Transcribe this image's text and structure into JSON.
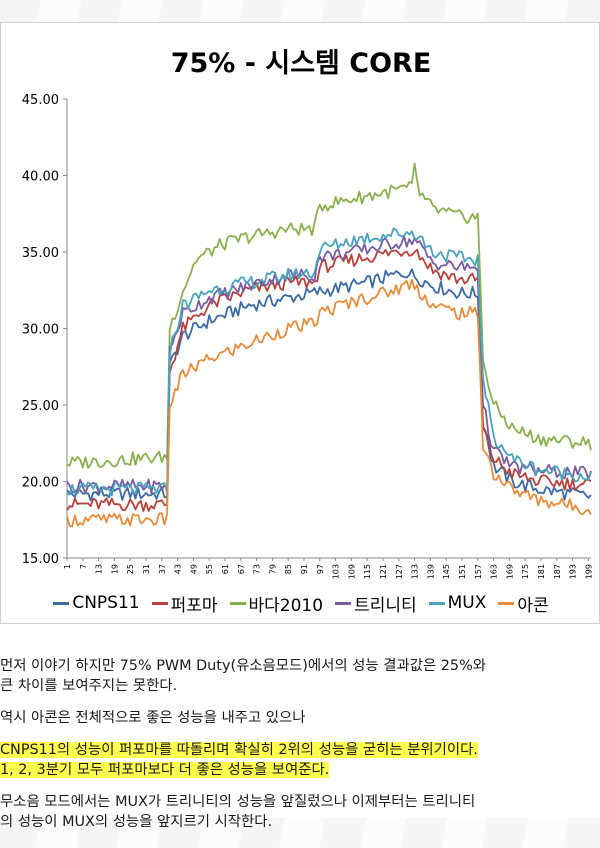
{
  "chart_data": {
    "type": "line",
    "title": "75% - 시스템 CORE",
    "xlabel": "",
    "ylabel": "",
    "ylim": [
      15,
      45
    ],
    "xlim": [
      1,
      200
    ],
    "yticks": [
      "15.00",
      "20.00",
      "25.00",
      "30.00",
      "35.00",
      "40.00",
      "45.00"
    ],
    "xticks": [
      "1",
      "7",
      "13",
      "19",
      "25",
      "31",
      "37",
      "43",
      "49",
      "55",
      "61",
      "67",
      "73",
      "79",
      "85",
      "91",
      "97",
      "103",
      "109",
      "115",
      "121",
      "127",
      "133",
      "139",
      "145",
      "151",
      "157",
      "163",
      "169",
      "175",
      "181",
      "187",
      "193",
      "199"
    ],
    "grid": false,
    "legend_position": "bottom",
    "series": [
      {
        "name": "CNPS11",
        "color": "#3a6aa8",
        "points": [
          [
            1,
            19.2
          ],
          [
            39,
            19.2
          ],
          [
            40,
            27.5
          ],
          [
            45,
            29.5
          ],
          [
            55,
            30.5
          ],
          [
            70,
            31.5
          ],
          [
            85,
            32
          ],
          [
            100,
            32.5
          ],
          [
            115,
            33
          ],
          [
            130,
            33.7
          ],
          [
            140,
            32.8
          ],
          [
            150,
            32.3
          ],
          [
            157,
            32.3
          ],
          [
            159,
            24
          ],
          [
            163,
            21
          ],
          [
            170,
            20
          ],
          [
            180,
            19.5
          ],
          [
            200,
            19
          ]
        ]
      },
      {
        "name": "퍼포마",
        "color": "#b8403c",
        "points": [
          [
            1,
            18.5
          ],
          [
            39,
            18.5
          ],
          [
            40,
            27.2
          ],
          [
            45,
            30
          ],
          [
            55,
            31.5
          ],
          [
            70,
            32.5
          ],
          [
            85,
            33
          ],
          [
            95,
            33
          ],
          [
            97,
            34
          ],
          [
            110,
            34.5
          ],
          [
            125,
            35
          ],
          [
            133,
            35.2
          ],
          [
            140,
            33.8
          ],
          [
            150,
            33.2
          ],
          [
            157,
            33.2
          ],
          [
            159,
            23.5
          ],
          [
            163,
            21.5
          ],
          [
            170,
            20.5
          ],
          [
            180,
            20
          ],
          [
            200,
            19.8
          ]
        ]
      },
      {
        "name": "바다2010",
        "color": "#8ab04e",
        "points": [
          [
            1,
            21.2
          ],
          [
            39,
            21.6
          ],
          [
            40,
            30
          ],
          [
            45,
            32.5
          ],
          [
            50,
            34.5
          ],
          [
            60,
            35.5
          ],
          [
            70,
            36
          ],
          [
            85,
            36.5
          ],
          [
            95,
            36.5
          ],
          [
            97,
            38
          ],
          [
            110,
            38.5
          ],
          [
            125,
            39
          ],
          [
            132,
            39.2
          ],
          [
            133,
            40.5
          ],
          [
            135,
            38.8
          ],
          [
            140,
            37.8
          ],
          [
            150,
            37.3
          ],
          [
            157,
            37.3
          ],
          [
            159,
            28
          ],
          [
            163,
            25
          ],
          [
            170,
            23.5
          ],
          [
            180,
            22.8
          ],
          [
            200,
            22.5
          ]
        ]
      },
      {
        "name": "트리니티",
        "color": "#7a5aa2",
        "points": [
          [
            1,
            19.7
          ],
          [
            39,
            19.7
          ],
          [
            40,
            28.5
          ],
          [
            45,
            31
          ],
          [
            55,
            32
          ],
          [
            70,
            32.8
          ],
          [
            85,
            33.5
          ],
          [
            95,
            33.5
          ],
          [
            97,
            34.7
          ],
          [
            110,
            35
          ],
          [
            125,
            35.6
          ],
          [
            133,
            35.8
          ],
          [
            140,
            34.3
          ],
          [
            150,
            34
          ],
          [
            157,
            34
          ],
          [
            159,
            25
          ],
          [
            163,
            22
          ],
          [
            170,
            21
          ],
          [
            180,
            20.7
          ],
          [
            200,
            20.5
          ]
        ]
      },
      {
        "name": "MUX",
        "color": "#4aa3bc",
        "points": [
          [
            1,
            19.5
          ],
          [
            39,
            19.5
          ],
          [
            40,
            28.5
          ],
          [
            45,
            31.5
          ],
          [
            55,
            32.5
          ],
          [
            70,
            33
          ],
          [
            85,
            33.5
          ],
          [
            95,
            33.7
          ],
          [
            97,
            35.2
          ],
          [
            110,
            35.8
          ],
          [
            125,
            36.2
          ],
          [
            133,
            36.3
          ],
          [
            140,
            35
          ],
          [
            150,
            34.6
          ],
          [
            157,
            34.5
          ],
          [
            159,
            26.5
          ],
          [
            163,
            23
          ],
          [
            170,
            21.5
          ],
          [
            180,
            20.8
          ],
          [
            200,
            20.3
          ]
        ]
      },
      {
        "name": "아콘",
        "color": "#e88c3c",
        "points": [
          [
            1,
            17.5
          ],
          [
            39,
            17.5
          ],
          [
            40,
            25
          ],
          [
            45,
            27
          ],
          [
            55,
            28
          ],
          [
            70,
            29
          ],
          [
            85,
            30
          ],
          [
            95,
            30.3
          ],
          [
            97,
            31
          ],
          [
            110,
            31.8
          ],
          [
            125,
            32.5
          ],
          [
            132,
            33
          ],
          [
            140,
            31.5
          ],
          [
            150,
            31
          ],
          [
            157,
            31
          ],
          [
            159,
            22.5
          ],
          [
            163,
            20.5
          ],
          [
            170,
            19.5
          ],
          [
            180,
            18.8
          ],
          [
            200,
            18.2
          ]
        ]
      }
    ]
  },
  "text": {
    "para1_line1": "먼저 이야기 하지만 75% PWM Duty(유소음모드)에서의 성능 결과값은 25%와",
    "para1_line2": "큰 차이를 보여주지는 못한다.",
    "para2": "역시 아콘은 전체적으로 좋은 성능을 내주고 있으나",
    "para3_line1": "CNPS11의 성능이 퍼포마를 따돌리며 확실히 2위의 성능을 굳히는 분위기이다.",
    "para3_line2": "1, 2, 3분기 모두 퍼포마보다 더 좋은 성능을 보여준다.",
    "para4_line1": "무소음 모드에서는 MUX가 트리니티의 성능을 앞질렀으나 이제부터는 트리니티",
    "para4_line2": "의 성능이 MUX의 성능을 앞지르기 시작한다."
  }
}
